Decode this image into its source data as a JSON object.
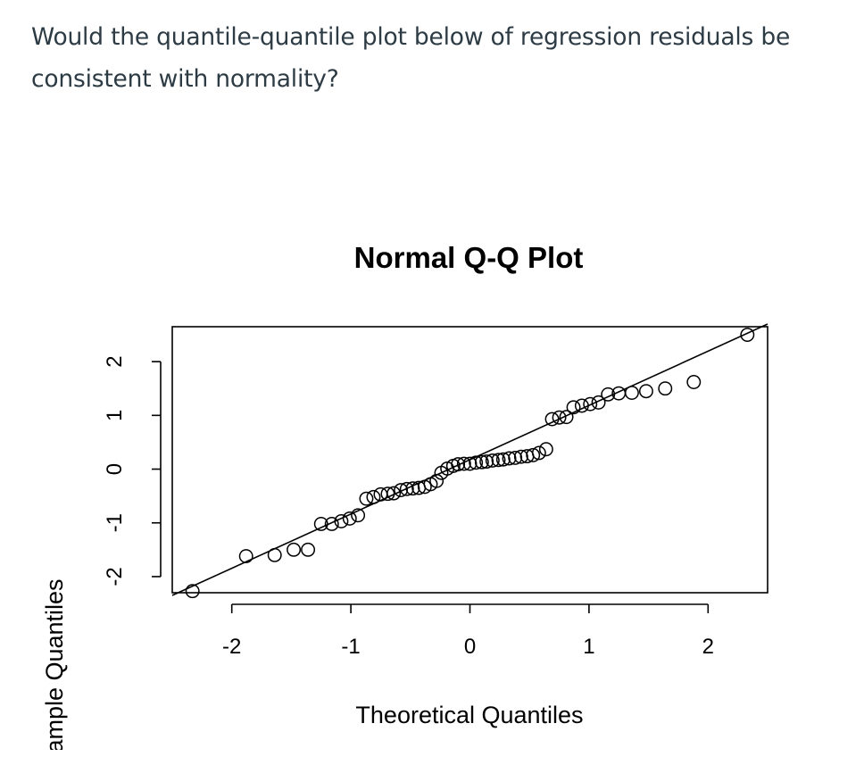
{
  "question": {
    "text": "Would the quantile-quantile plot below of regression residuals be consistent with normality?"
  },
  "chart_data": {
    "type": "scatter",
    "title": "Normal Q-Q Plot",
    "xlabel": "Theoretical Quantiles",
    "ylabel": "Sample Quantiles",
    "xlim": [
      -2.5,
      2.5
    ],
    "ylim": [
      -2.3,
      2.65
    ],
    "x_ticks": [
      -2,
      -1,
      0,
      1,
      2
    ],
    "y_ticks": [
      -2,
      -1,
      0,
      1,
      2
    ],
    "x_tick_labels": [
      "-2",
      "-1",
      "0",
      "1",
      "2"
    ],
    "y_tick_labels": [
      "-2",
      "-1",
      "0",
      "1",
      "2"
    ],
    "reference_line": {
      "x": [
        -2.5,
        2.5
      ],
      "y": [
        -2.35,
        2.7
      ]
    },
    "grid": false,
    "legend": false,
    "colors": {
      "points": "#000000",
      "line": "#000000",
      "question_text": "#2d3b45"
    },
    "points": [
      {
        "x": -2.33,
        "y": -2.27
      },
      {
        "x": -1.88,
        "y": -1.62
      },
      {
        "x": -1.64,
        "y": -1.6
      },
      {
        "x": -1.48,
        "y": -1.5
      },
      {
        "x": -1.36,
        "y": -1.5
      },
      {
        "x": -1.25,
        "y": -1.02
      },
      {
        "x": -1.16,
        "y": -1.02
      },
      {
        "x": -1.08,
        "y": -0.97
      },
      {
        "x": -1.01,
        "y": -0.92
      },
      {
        "x": -0.94,
        "y": -0.86
      },
      {
        "x": -0.87,
        "y": -0.55
      },
      {
        "x": -0.81,
        "y": -0.52
      },
      {
        "x": -0.75,
        "y": -0.47
      },
      {
        "x": -0.69,
        "y": -0.46
      },
      {
        "x": -0.64,
        "y": -0.45
      },
      {
        "x": -0.58,
        "y": -0.39
      },
      {
        "x": -0.53,
        "y": -0.37
      },
      {
        "x": -0.48,
        "y": -0.36
      },
      {
        "x": -0.43,
        "y": -0.35
      },
      {
        "x": -0.38,
        "y": -0.33
      },
      {
        "x": -0.33,
        "y": -0.28
      },
      {
        "x": -0.28,
        "y": -0.22
      },
      {
        "x": -0.24,
        "y": -0.07
      },
      {
        "x": -0.19,
        "y": 0.01
      },
      {
        "x": -0.14,
        "y": 0.06
      },
      {
        "x": -0.1,
        "y": 0.09
      },
      {
        "x": -0.05,
        "y": 0.1
      },
      {
        "x": 0.0,
        "y": 0.1
      },
      {
        "x": 0.05,
        "y": 0.12
      },
      {
        "x": 0.1,
        "y": 0.13
      },
      {
        "x": 0.14,
        "y": 0.14
      },
      {
        "x": 0.19,
        "y": 0.16
      },
      {
        "x": 0.24,
        "y": 0.17
      },
      {
        "x": 0.28,
        "y": 0.18
      },
      {
        "x": 0.33,
        "y": 0.2
      },
      {
        "x": 0.38,
        "y": 0.21
      },
      {
        "x": 0.43,
        "y": 0.23
      },
      {
        "x": 0.48,
        "y": 0.24
      },
      {
        "x": 0.53,
        "y": 0.26
      },
      {
        "x": 0.58,
        "y": 0.3
      },
      {
        "x": 0.64,
        "y": 0.37
      },
      {
        "x": 0.69,
        "y": 0.93
      },
      {
        "x": 0.75,
        "y": 0.96
      },
      {
        "x": 0.81,
        "y": 0.97
      },
      {
        "x": 0.87,
        "y": 1.15
      },
      {
        "x": 0.94,
        "y": 1.18
      },
      {
        "x": 1.01,
        "y": 1.21
      },
      {
        "x": 1.08,
        "y": 1.24
      },
      {
        "x": 1.16,
        "y": 1.39
      },
      {
        "x": 1.25,
        "y": 1.41
      },
      {
        "x": 1.36,
        "y": 1.42
      },
      {
        "x": 1.48,
        "y": 1.45
      },
      {
        "x": 1.64,
        "y": 1.5
      },
      {
        "x": 1.88,
        "y": 1.62
      },
      {
        "x": 2.33,
        "y": 2.5
      }
    ]
  }
}
